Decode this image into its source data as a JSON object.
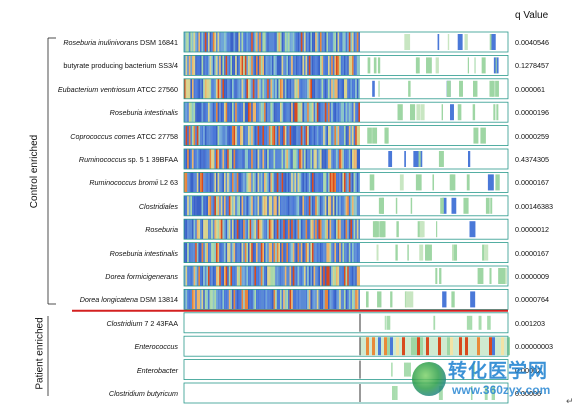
{
  "header": {
    "q_value_title": "q Value"
  },
  "groups": {
    "control": "Control enriched",
    "patient": "Patient enriched"
  },
  "rows": [
    {
      "label_main": "Roseburia inulinivorans",
      "label_rest": " DSM 16841",
      "italic": true,
      "q": "0.0040546",
      "group": "control"
    },
    {
      "label_main": "butyrate producing bacterium SS3/4",
      "label_rest": "",
      "italic": false,
      "q": "0.1278457",
      "group": "control"
    },
    {
      "label_main": "Eubacterium ventriosum",
      "label_rest": " ATCC 27560",
      "italic": true,
      "q": "0.000061",
      "group": "control"
    },
    {
      "label_main": "Roseburia intestinalis",
      "label_rest": "",
      "italic": true,
      "q": "0.0000196",
      "group": "control"
    },
    {
      "label_main": "Coprococcus comes",
      "label_rest": " ATCC 27758",
      "italic": true,
      "q": "0.0000259",
      "group": "control"
    },
    {
      "label_main": "Ruminococcus",
      "label_rest": " sp. 5 1 39BFAA",
      "italic": true,
      "q": "0.4374305",
      "group": "control"
    },
    {
      "label_main": "Ruminococcus bromii",
      "label_rest": " L2 63",
      "italic": true,
      "q": "0.0000167",
      "group": "control"
    },
    {
      "label_main": "Clostridiales",
      "label_rest": "",
      "italic": true,
      "q": "0.00146383",
      "group": "control"
    },
    {
      "label_main": "Roseburia",
      "label_rest": "",
      "italic": true,
      "q": "0.0000012",
      "group": "control"
    },
    {
      "label_main": "Roseburia intestinalis",
      "label_rest": "",
      "italic": true,
      "q": "0.0000167",
      "group": "control"
    },
    {
      "label_main": "Dorea formicigenerans",
      "label_rest": "",
      "italic": true,
      "q": "0.0000009",
      "group": "control"
    },
    {
      "label_main": "Dorea longicatena",
      "label_rest": " DSM 13814",
      "italic": true,
      "q": "0.0000764",
      "group": "control"
    },
    {
      "label_main": "Clostridium",
      "label_rest": " 7 2 43FAA",
      "italic": true,
      "q": "0.001203",
      "group": "patient"
    },
    {
      "label_main": "Enterococcus",
      "label_rest": "",
      "italic": true,
      "q": "0.00000003",
      "group": "patient"
    },
    {
      "label_main": "Enterobacter",
      "label_rest": "",
      "italic": true,
      "q": "0.00002",
      "group": "patient"
    },
    {
      "label_main": "Clostridium butyricum",
      "label_rest": "",
      "italic": true,
      "q": "0.00006",
      "group": "patient"
    }
  ],
  "colors": {
    "separator": "#d42020",
    "box_border": "#2a9a8c",
    "heat_low": "#3f6fd0",
    "heat_mid": "#e6d08a",
    "heat_high": "#e04a1c",
    "heat_green": "#7fd08a"
  },
  "watermark": {
    "text": "转化医学网",
    "url": "www.360zyx.com"
  }
}
